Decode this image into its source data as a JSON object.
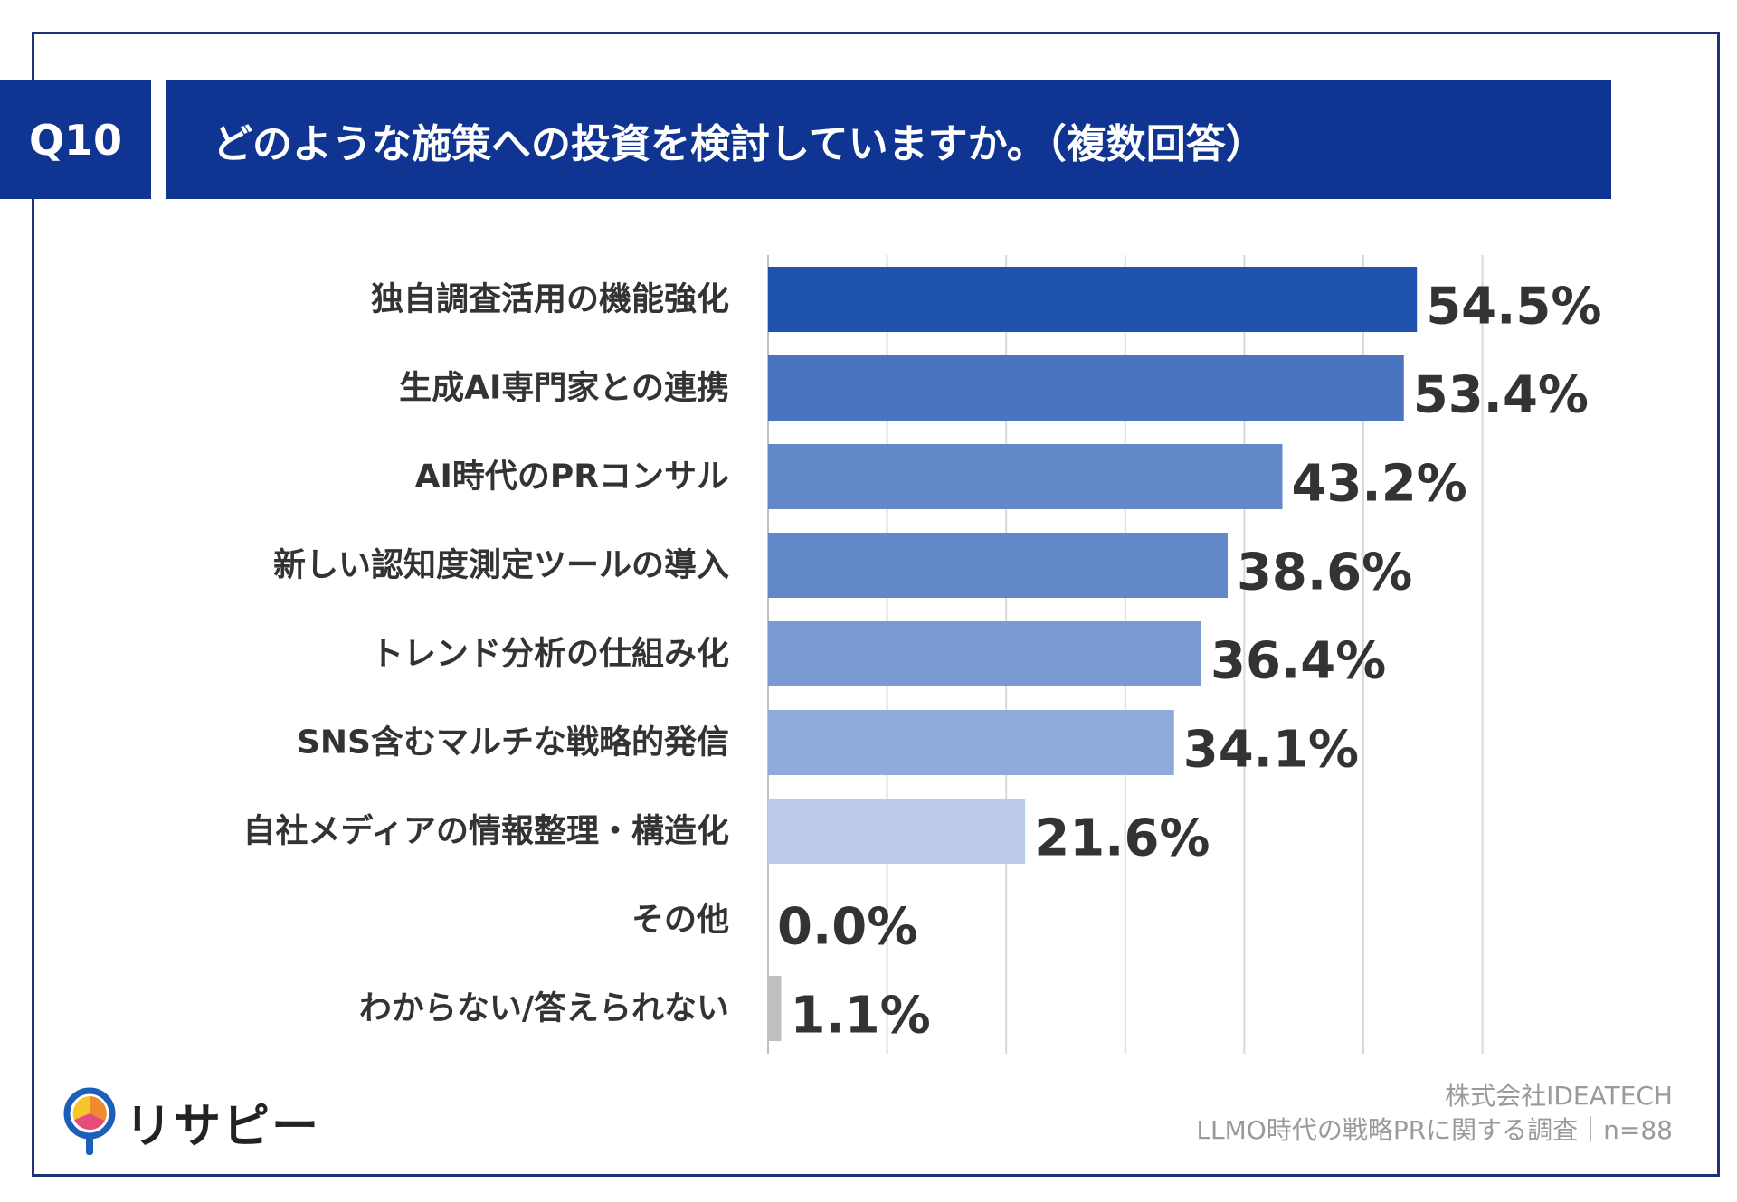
{
  "header": {
    "question_no": "Q10",
    "title": "どのような施策への投資を検討していますか。（複数回答）"
  },
  "chart_data": {
    "type": "bar",
    "orientation": "horizontal",
    "categories": [
      "独自調査活用の機能強化",
      "生成AI専門家との連携",
      "AI時代のPRコンサル",
      "新しい認知度測定ツールの導入",
      "トレンド分析の仕組み化",
      "SNS含むマルチな戦略的発信",
      "自社メディアの情報整理・構造化",
      "その他",
      "わからない/答えられない"
    ],
    "values": [
      54.5,
      53.4,
      43.2,
      38.6,
      36.4,
      34.1,
      21.6,
      0.0,
      1.1
    ],
    "value_labels": [
      "54.5%",
      "53.4%",
      "43.2%",
      "38.6%",
      "36.4%",
      "34.1%",
      "21.6%",
      "0.0%",
      "1.1%"
    ],
    "colors": [
      "#2052b0",
      "#4a74c0",
      "#6288c8",
      "#6288c8",
      "#7a9bd2",
      "#8fabdc",
      "#bccbe8",
      "#bccbe8",
      "#bfbfbf"
    ],
    "xlim": [
      0,
      60
    ],
    "grid": true
  },
  "logo": {
    "text": "リサピー"
  },
  "source": {
    "line1": "株式会社IDEATECH",
    "line2": "LLMO時代の戦略PRに関する調査｜n=88"
  }
}
